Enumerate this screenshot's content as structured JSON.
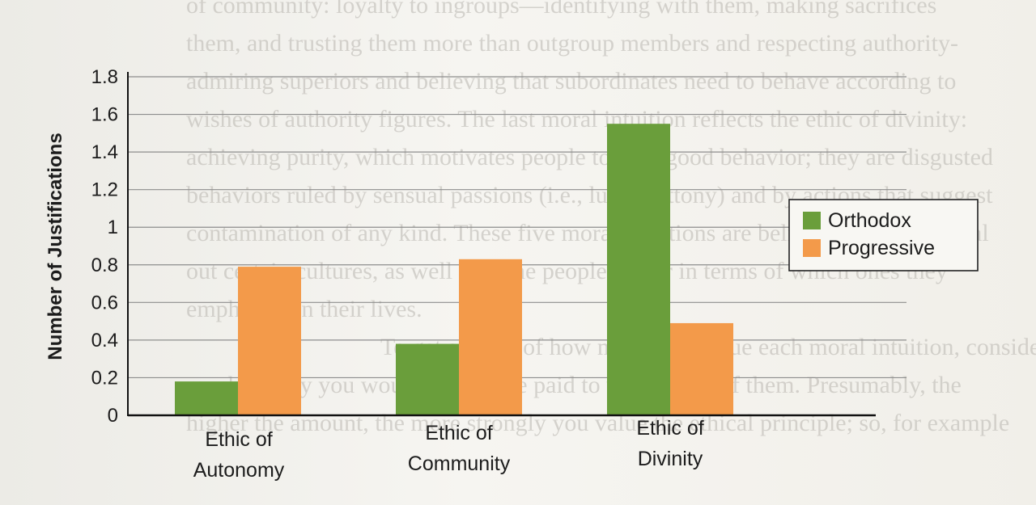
{
  "chart_data": {
    "type": "bar",
    "title": "",
    "xlabel": "",
    "ylabel": "Number of Justifications",
    "ylim": [
      0,
      1.8
    ],
    "yticks": [
      "0",
      "0.2",
      "0.4",
      "0.6",
      "0.8",
      "1",
      "1.2",
      "1.4",
      "1.6",
      "1.8"
    ],
    "categories": [
      [
        "Ethic of",
        "Autonomy"
      ],
      [
        "Ethic of",
        "Community"
      ],
      [
        "Ethic of",
        "Divinity"
      ]
    ],
    "series": [
      {
        "name": "Orthodox",
        "color": "#6a9e3b",
        "values": [
          0.18,
          0.38,
          1.55
        ]
      },
      {
        "name": "Progressive",
        "color": "#f39a4a",
        "values": [
          0.79,
          0.83,
          0.49
        ]
      }
    ],
    "grid": true,
    "legend": "right"
  },
  "background_text": [
    "of community: loyalty to ingroups—identifying with them, making sacrifices",
    "them, and trusting them more than outgroup members and respecting authority-",
    "admiring superiors and believing that subordinates need to behave according to",
    "wishes of authority figures. The last moral intuition reflects the ethic of divinity:",
    "achieving purity, which motivates people toward good behavior; they are disgusted",
    "behaviors ruled by sensual passions (i.e., lust, gluttony) and by actions that suggest",
    "contamination of any kind. These five moral intuitions are believed to be universal",
    "out certain cultures, as well as some people, differ in terms of which ones they",
    "emphasize in their lives.",
    "To get an idea of how much you value each moral intuition, consider how",
    "much money you would need to be paid to violate any of them. Presumably, the",
    "higher the amount, the more strongly you value the ethical principle; so, for example"
  ]
}
